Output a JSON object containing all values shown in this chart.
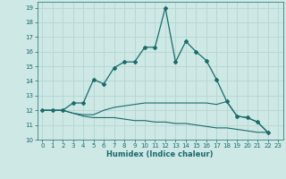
{
  "xlabel": "Humidex (Indice chaleur)",
  "background_color": "#cde8e5",
  "grid_color": "#b8d8d5",
  "line_color": "#1a6b6b",
  "xlim": [
    -0.5,
    23.5
  ],
  "ylim": [
    10,
    19.4
  ],
  "xticks": [
    0,
    1,
    2,
    3,
    4,
    5,
    6,
    7,
    8,
    9,
    10,
    11,
    12,
    13,
    14,
    15,
    16,
    17,
    18,
    19,
    20,
    21,
    22,
    23
  ],
  "yticks": [
    10,
    11,
    12,
    13,
    14,
    15,
    16,
    17,
    18,
    19
  ],
  "series1_x": [
    0,
    1,
    2,
    3,
    4,
    5,
    6,
    7,
    8,
    9,
    10,
    11,
    12,
    13,
    14,
    15,
    16,
    17,
    18,
    19,
    20,
    21,
    22
  ],
  "series1_y": [
    12.0,
    12.0,
    12.0,
    12.5,
    12.5,
    14.1,
    13.8,
    14.9,
    15.3,
    15.3,
    16.3,
    16.3,
    19.0,
    15.3,
    16.7,
    16.0,
    15.4,
    14.1,
    12.6,
    11.6,
    11.5,
    11.2,
    10.5
  ],
  "series2_y": [
    12.0,
    12.0,
    12.0,
    11.8,
    11.7,
    11.7,
    12.0,
    12.2,
    12.3,
    12.4,
    12.5,
    12.5,
    12.5,
    12.5,
    12.5,
    12.5,
    12.5,
    12.4,
    12.6,
    11.6,
    11.5,
    11.2,
    10.5
  ],
  "series3_y": [
    12.0,
    12.0,
    12.0,
    11.8,
    11.6,
    11.5,
    11.5,
    11.5,
    11.4,
    11.3,
    11.3,
    11.2,
    11.2,
    11.1,
    11.1,
    11.0,
    10.9,
    10.8,
    10.8,
    10.7,
    10.6,
    10.5,
    10.5
  ]
}
